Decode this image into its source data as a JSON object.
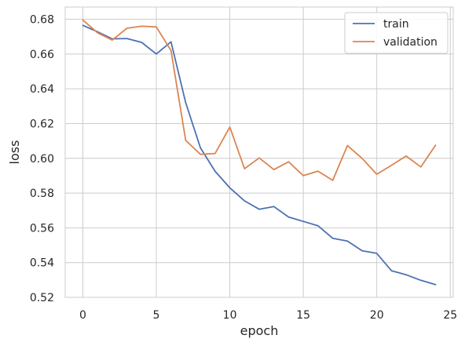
{
  "chart_data": {
    "type": "line",
    "xlabel": "epoch",
    "ylabel": "loss",
    "xlim": [
      -1.2,
      25.2
    ],
    "ylim": [
      0.52,
      0.687
    ],
    "x_ticks": [
      0,
      5,
      10,
      15,
      20,
      25
    ],
    "y_ticks": [
      0.52,
      0.54,
      0.56,
      0.58,
      0.6,
      0.62,
      0.64,
      0.66,
      0.68
    ],
    "x_tick_labels": [
      "0",
      "5",
      "10",
      "15",
      "20",
      "25"
    ],
    "y_tick_labels": [
      "0.52",
      "0.54",
      "0.56",
      "0.58",
      "0.60",
      "0.62",
      "0.64",
      "0.66",
      "0.68"
    ],
    "grid": true,
    "legend_position": "top-right",
    "x": [
      0,
      1,
      2,
      3,
      4,
      5,
      6,
      7,
      8,
      9,
      10,
      11,
      12,
      13,
      14,
      15,
      16,
      17,
      18,
      19,
      20,
      21,
      22,
      23,
      24
    ],
    "series": [
      {
        "name": "train",
        "color": "#4c72b0",
        "values": [
          0.6765,
          0.6728,
          0.6687,
          0.6689,
          0.6667,
          0.66,
          0.667,
          0.632,
          0.606,
          0.5925,
          0.583,
          0.5755,
          0.5707,
          0.5722,
          0.5662,
          0.5637,
          0.5612,
          0.554,
          0.5524,
          0.5468,
          0.5453,
          0.5353,
          0.533,
          0.5298,
          0.5273
        ]
      },
      {
        "name": "validation",
        "color": "#dd8452",
        "values": [
          0.6795,
          0.6722,
          0.668,
          0.6748,
          0.676,
          0.6756,
          0.662,
          0.6103,
          0.6023,
          0.6028,
          0.618,
          0.594,
          0.6002,
          0.5935,
          0.598,
          0.59,
          0.5926,
          0.5873,
          0.6073,
          0.6,
          0.5908,
          0.596,
          0.6013,
          0.595,
          0.6075
        ]
      }
    ]
  }
}
